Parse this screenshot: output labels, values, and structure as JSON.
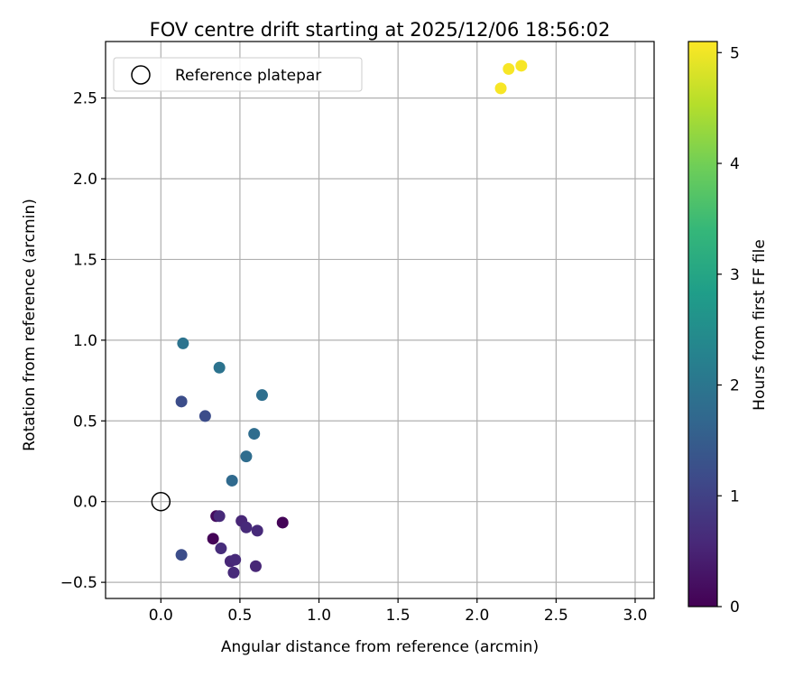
{
  "chart_data": {
    "type": "scatter",
    "title": "FOV centre drift starting at 2025/12/06 18:56:02",
    "xlabel": "Angular distance from reference (arcmin)",
    "ylabel": "Rotation from reference (arcmin)",
    "xlim": [
      -0.35,
      3.12
    ],
    "ylim": [
      -0.6,
      2.85
    ],
    "xticks": [
      0.0,
      0.5,
      1.0,
      1.5,
      2.0,
      2.5,
      3.0
    ],
    "xtick_labels": [
      "0.0",
      "0.5",
      "1.0",
      "1.5",
      "2.0",
      "2.5",
      "3.0"
    ],
    "yticks": [
      -0.5,
      0.0,
      0.5,
      1.0,
      1.5,
      2.0,
      2.5
    ],
    "ytick_labels": [
      "−0.5",
      "0.0",
      "0.5",
      "1.0",
      "1.5",
      "2.0",
      "2.5"
    ],
    "grid": true,
    "legend": {
      "position": "top-left",
      "entries": [
        {
          "label": "Reference platepar",
          "marker": "open-circle"
        }
      ]
    },
    "reference_point": {
      "x": 0.0,
      "y": 0.0
    },
    "colorbar": {
      "label": "Hours from first FF file",
      "colormap": "viridis",
      "range": [
        0,
        5.1
      ],
      "ticks": [
        0,
        1,
        2,
        3,
        4,
        5
      ],
      "tick_labels": [
        "0",
        "1",
        "2",
        "3",
        "4",
        "5"
      ]
    },
    "points": [
      {
        "x": 0.33,
        "y": -0.23,
        "t": 0.05
      },
      {
        "x": 0.35,
        "y": -0.09,
        "t": 0.15
      },
      {
        "x": 0.77,
        "y": -0.13,
        "t": 0.05
      },
      {
        "x": 0.46,
        "y": -0.44,
        "t": 0.6
      },
      {
        "x": 0.44,
        "y": -0.37,
        "t": 0.55
      },
      {
        "x": 0.47,
        "y": -0.36,
        "t": 0.6
      },
      {
        "x": 0.38,
        "y": -0.29,
        "t": 0.65
      },
      {
        "x": 0.37,
        "y": -0.09,
        "t": 0.6
      },
      {
        "x": 0.51,
        "y": -0.12,
        "t": 0.55
      },
      {
        "x": 0.54,
        "y": -0.16,
        "t": 0.6
      },
      {
        "x": 0.61,
        "y": -0.18,
        "t": 0.6
      },
      {
        "x": 0.6,
        "y": -0.4,
        "t": 0.55
      },
      {
        "x": 0.13,
        "y": -0.33,
        "t": 1.2
      },
      {
        "x": 0.13,
        "y": 0.62,
        "t": 1.2
      },
      {
        "x": 0.28,
        "y": 0.53,
        "t": 1.2
      },
      {
        "x": 0.45,
        "y": 0.13,
        "t": 1.75
      },
      {
        "x": 0.54,
        "y": 0.28,
        "t": 1.8
      },
      {
        "x": 0.59,
        "y": 0.42,
        "t": 1.8
      },
      {
        "x": 0.64,
        "y": 0.66,
        "t": 1.85
      },
      {
        "x": 0.37,
        "y": 0.83,
        "t": 1.95
      },
      {
        "x": 0.14,
        "y": 0.98,
        "t": 1.95
      },
      {
        "x": 2.15,
        "y": 2.56,
        "t": 5.05
      },
      {
        "x": 2.2,
        "y": 2.68,
        "t": 5.05
      },
      {
        "x": 2.28,
        "y": 2.7,
        "t": 5.05
      }
    ]
  }
}
